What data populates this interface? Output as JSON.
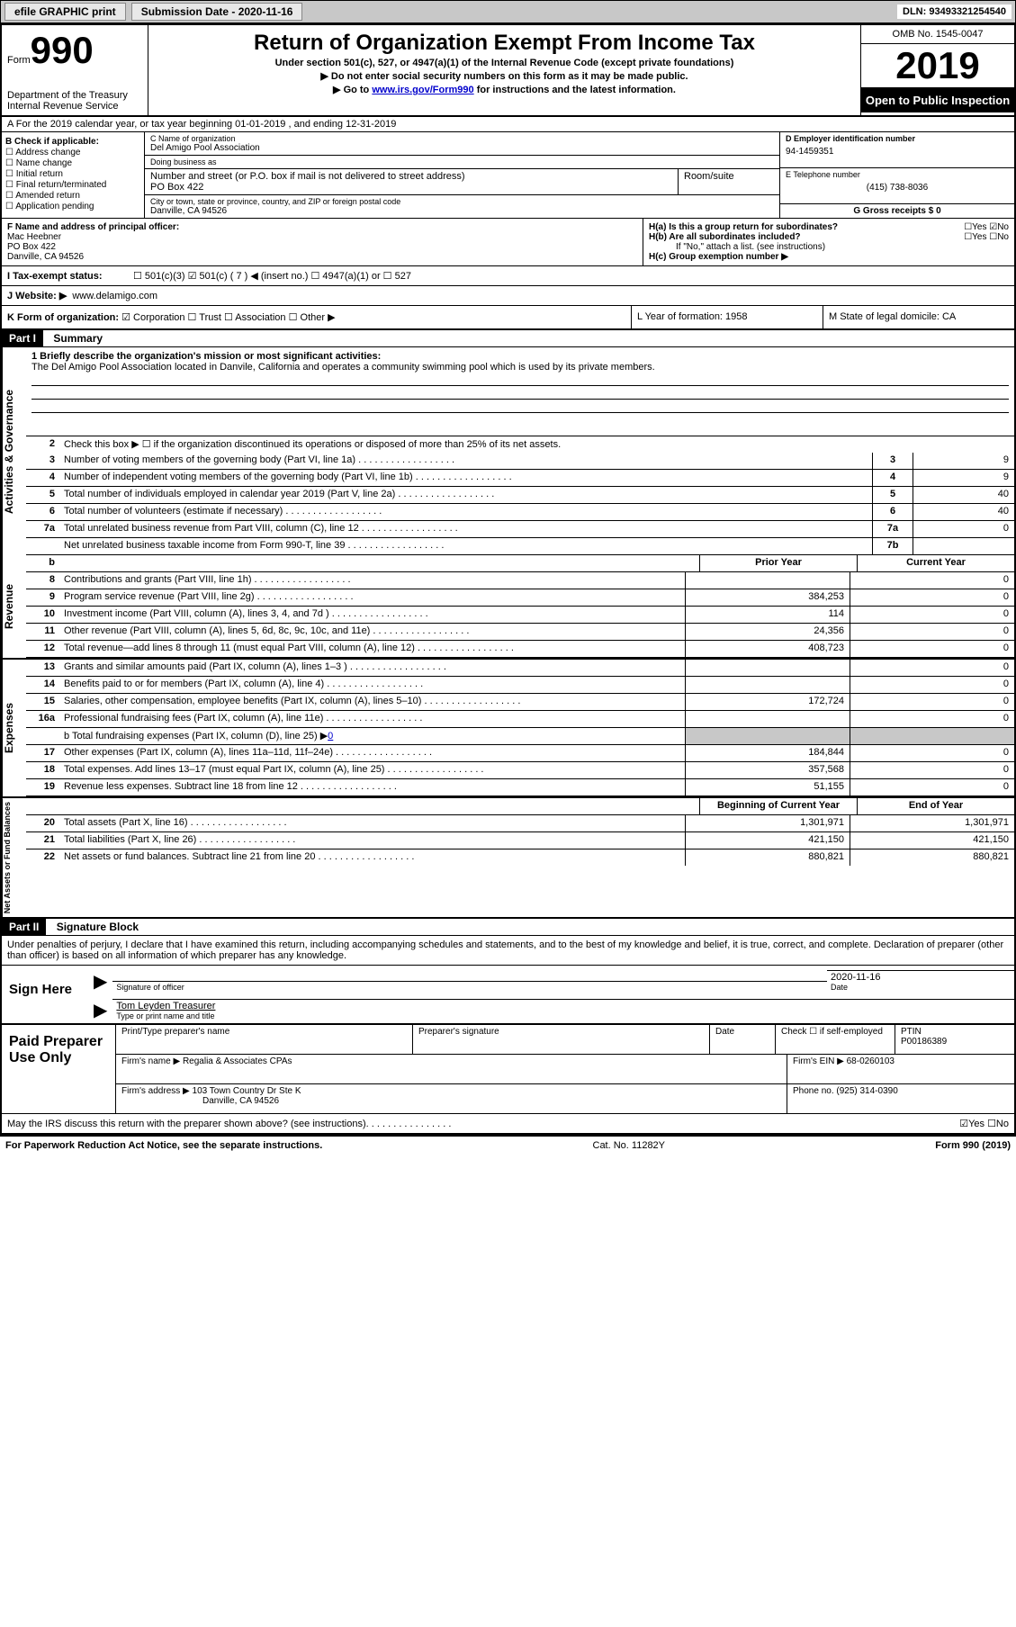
{
  "topbar": {
    "efile": "efile GRAPHIC print",
    "submission": "Submission Date - 2020-11-16",
    "dln": "DLN: 93493321254540"
  },
  "header": {
    "form_label": "Form",
    "form_no": "990",
    "dept": "Department of the Treasury\nInternal Revenue Service",
    "title": "Return of Organization Exempt From Income Tax",
    "sub1": "Under section 501(c), 527, or 4947(a)(1) of the Internal Revenue Code (except private foundations)",
    "sub2": "Do not enter social security numbers on this form as it may be made public.",
    "sub3_pre": "Go to ",
    "sub3_link": "www.irs.gov/Form990",
    "sub3_post": " for instructions and the latest information.",
    "omb": "OMB No. 1545-0047",
    "year": "2019",
    "open": "Open to Public Inspection"
  },
  "section_a": "A For the 2019 calendar year, or tax year beginning 01-01-2019   , and ending 12-31-2019",
  "b": {
    "label": "B Check if applicable:",
    "items": [
      "Address change",
      "Name change",
      "Initial return",
      "Final return/terminated",
      "Amended return",
      "Application pending"
    ]
  },
  "c": {
    "name_lbl": "C Name of organization",
    "name": "Del Amigo Pool Association",
    "dba_lbl": "Doing business as",
    "dba": "",
    "street_lbl": "Number and street (or P.O. box if mail is not delivered to street address)",
    "street": "PO Box 422",
    "room_lbl": "Room/suite",
    "city_lbl": "City or town, state or province, country, and ZIP or foreign postal code",
    "city": "Danville, CA  94526"
  },
  "d": {
    "ein_lbl": "D Employer identification number",
    "ein": "94-1459351",
    "tel_lbl": "E Telephone number",
    "tel": "(415) 738-8036",
    "gross_lbl": "G Gross receipts $ 0"
  },
  "f": {
    "lbl": "F Name and address of principal officer:",
    "name": "Mac Heebner",
    "addr1": "PO Box 422",
    "addr2": "Danville, CA  94526"
  },
  "h": {
    "a": "H(a)  Is this a group return for subordinates?",
    "a_ans": "☐Yes ☑No",
    "b": "H(b)  Are all subordinates included?",
    "b_ans": "☐Yes ☐No",
    "b_note": "If \"No,\" attach a list. (see instructions)",
    "c": "H(c)  Group exemption number ▶"
  },
  "i": {
    "lbl": "I   Tax-exempt status:",
    "opts": "☐ 501(c)(3)   ☑ 501(c) ( 7 ) ◀ (insert no.)   ☐ 4947(a)(1) or   ☐ 527"
  },
  "j": {
    "lbl": "J   Website: ▶",
    "val": "www.delamigo.com"
  },
  "k": {
    "lbl": "K Form of organization:",
    "opts": "☑ Corporation  ☐ Trust  ☐ Association  ☐ Other ▶"
  },
  "l": "L Year of formation: 1958",
  "m": "M State of legal domicile: CA",
  "part1": {
    "hdr": "Part I",
    "title": "Summary"
  },
  "mission": {
    "lbl": "1  Briefly describe the organization's mission or most significant activities:",
    "text": "The Del Amigo Pool Association located in Danvile, California and operates a community swimming pool which is used by its private members."
  },
  "gov": {
    "side": "Activities & Governance",
    "l2": "Check this box ▶ ☐ if the organization discontinued its operations or disposed of more than 25% of its net assets.",
    "rows": [
      {
        "n": "3",
        "d": "Number of voting members of the governing body (Part VI, line 1a)",
        "box": "3",
        "v": "9"
      },
      {
        "n": "4",
        "d": "Number of independent voting members of the governing body (Part VI, line 1b)",
        "box": "4",
        "v": "9"
      },
      {
        "n": "5",
        "d": "Total number of individuals employed in calendar year 2019 (Part V, line 2a)",
        "box": "5",
        "v": "40"
      },
      {
        "n": "6",
        "d": "Total number of volunteers (estimate if necessary)",
        "box": "6",
        "v": "40"
      },
      {
        "n": "7a",
        "d": "Total unrelated business revenue from Part VIII, column (C), line 12",
        "box": "7a",
        "v": "0"
      },
      {
        "n": " ",
        "d": "Net unrelated business taxable income from Form 990-T, line 39",
        "box": "7b",
        "v": ""
      }
    ]
  },
  "cols": {
    "prior": "Prior Year",
    "current": "Current Year",
    "begin": "Beginning of Current Year",
    "end": "End of Year"
  },
  "rev": {
    "side": "Revenue",
    "rows": [
      {
        "n": "8",
        "d": "Contributions and grants (Part VIII, line 1h)",
        "p": "",
        "c": "0"
      },
      {
        "n": "9",
        "d": "Program service revenue (Part VIII, line 2g)",
        "p": "384,253",
        "c": "0"
      },
      {
        "n": "10",
        "d": "Investment income (Part VIII, column (A), lines 3, 4, and 7d )",
        "p": "114",
        "c": "0"
      },
      {
        "n": "11",
        "d": "Other revenue (Part VIII, column (A), lines 5, 6d, 8c, 9c, 10c, and 11e)",
        "p": "24,356",
        "c": "0"
      },
      {
        "n": "12",
        "d": "Total revenue—add lines 8 through 11 (must equal Part VIII, column (A), line 12)",
        "p": "408,723",
        "c": "0"
      }
    ]
  },
  "exp": {
    "side": "Expenses",
    "rows": [
      {
        "n": "13",
        "d": "Grants and similar amounts paid (Part IX, column (A), lines 1–3 )",
        "p": "",
        "c": "0"
      },
      {
        "n": "14",
        "d": "Benefits paid to or for members (Part IX, column (A), line 4)",
        "p": "",
        "c": "0"
      },
      {
        "n": "15",
        "d": "Salaries, other compensation, employee benefits (Part IX, column (A), lines 5–10)",
        "p": "172,724",
        "c": "0"
      },
      {
        "n": "16a",
        "d": "Professional fundraising fees (Part IX, column (A), line 11e)",
        "p": "",
        "c": "0"
      }
    ],
    "l16b_pre": "b  Total fundraising expenses (Part IX, column (D), line 25) ▶",
    "l16b_val": "0",
    "rows2": [
      {
        "n": "17",
        "d": "Other expenses (Part IX, column (A), lines 11a–11d, 11f–24e)",
        "p": "184,844",
        "c": "0"
      },
      {
        "n": "18",
        "d": "Total expenses. Add lines 13–17 (must equal Part IX, column (A), line 25)",
        "p": "357,568",
        "c": "0"
      },
      {
        "n": "19",
        "d": "Revenue less expenses. Subtract line 18 from line 12",
        "p": "51,155",
        "c": "0"
      }
    ]
  },
  "net": {
    "side": "Net Assets or Fund Balances",
    "rows": [
      {
        "n": "20",
        "d": "Total assets (Part X, line 16)",
        "p": "1,301,971",
        "c": "1,301,971"
      },
      {
        "n": "21",
        "d": "Total liabilities (Part X, line 26)",
        "p": "421,150",
        "c": "421,150"
      },
      {
        "n": "22",
        "d": "Net assets or fund balances. Subtract line 21 from line 20",
        "p": "880,821",
        "c": "880,821"
      }
    ]
  },
  "part2": {
    "hdr": "Part II",
    "title": "Signature Block"
  },
  "sig": {
    "decl": "Under penalties of perjury, I declare that I have examined this return, including accompanying schedules and statements, and to the best of my knowledge and belief, it is true, correct, and complete. Declaration of preparer (other than officer) is based on all information of which preparer has any knowledge.",
    "here": "Sign Here",
    "officer_lbl": "Signature of officer",
    "date": "2020-11-16",
    "date_lbl": "Date",
    "name": "Tom Leyden  Treasurer",
    "name_lbl": "Type or print name and title"
  },
  "prep": {
    "left": "Paid Preparer Use Only",
    "r1": {
      "a": "Print/Type preparer's name",
      "b": "Preparer's signature",
      "c": "Date",
      "d": "Check ☐ if self-employed",
      "e": "PTIN",
      "ev": "P00186389"
    },
    "r2": {
      "a": "Firm's name    ▶",
      "av": "Regalia & Associates CPAs",
      "b": "Firm's EIN ▶",
      "bv": "68-0260103"
    },
    "r3": {
      "a": "Firm's address ▶",
      "av1": "103 Town Country Dr Ste K",
      "av2": "Danville, CA  94526",
      "b": "Phone no. (925) 314-0390"
    }
  },
  "discuss": "May the IRS discuss this return with the preparer shown above? (see instructions)",
  "discuss_ans": "☑Yes ☐No",
  "footer": {
    "left": "For Paperwork Reduction Act Notice, see the separate instructions.",
    "mid": "Cat. No. 11282Y",
    "right": "Form 990 (2019)"
  }
}
